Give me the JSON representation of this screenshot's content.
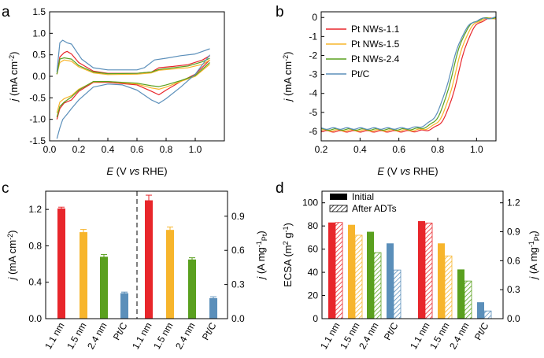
{
  "colors": {
    "red": "#e8262b",
    "orange": "#f7b52c",
    "green": "#5aa01f",
    "blue": "#5b8fba"
  },
  "panel_labels": {
    "a": "a",
    "b": "b",
    "c": "c",
    "d": "d"
  },
  "chart_data": [
    {
      "id": "a",
      "type": "line",
      "title": "",
      "xlabel_parts": [
        "E",
        " (V ",
        "vs",
        " RHE)"
      ],
      "ylabel_parts": [
        "j",
        " (mA cm",
        "-2",
        ")"
      ],
      "xlim": [
        0,
        1.2
      ],
      "ylim": [
        -1.5,
        1.5
      ],
      "xticks": [
        "0.0",
        "0.2",
        "0.4",
        "0.6",
        "0.8",
        "1.0"
      ],
      "xtick_values": [
        0,
        0.2,
        0.4,
        0.6,
        0.8,
        1.0
      ],
      "yticks": [
        "-1.5",
        "-1.0",
        "-0.5",
        "0.0",
        "0.5",
        "1.0",
        "1.5"
      ],
      "ytick_values": [
        -1.5,
        -1.0,
        -0.5,
        0,
        0.5,
        1.0,
        1.5
      ],
      "series": [
        {
          "name": "Pt NWs-1.1",
          "color": "#e8262b",
          "anodic": [
            [
              0.05,
              0.05
            ],
            [
              0.07,
              0.45
            ],
            [
              0.1,
              0.55
            ],
            [
              0.12,
              0.58
            ],
            [
              0.15,
              0.52
            ],
            [
              0.2,
              0.32
            ],
            [
              0.3,
              0.12
            ],
            [
              0.4,
              0.07
            ],
            [
              0.6,
              0.07
            ],
            [
              0.7,
              0.1
            ],
            [
              0.75,
              0.2
            ],
            [
              0.85,
              0.23
            ],
            [
              0.95,
              0.27
            ],
            [
              1.05,
              0.38
            ],
            [
              1.1,
              0.48
            ]
          ],
          "cathodic": [
            [
              1.1,
              0.38
            ],
            [
              1.0,
              0.05
            ],
            [
              0.9,
              -0.12
            ],
            [
              0.8,
              -0.32
            ],
            [
              0.75,
              -0.43
            ],
            [
              0.7,
              -0.35
            ],
            [
              0.6,
              -0.2
            ],
            [
              0.4,
              -0.14
            ],
            [
              0.3,
              -0.14
            ],
            [
              0.2,
              -0.35
            ],
            [
              0.15,
              -0.55
            ],
            [
              0.1,
              -0.62
            ],
            [
              0.07,
              -0.75
            ],
            [
              0.05,
              -1.0
            ]
          ]
        },
        {
          "name": "Pt NWs-1.5",
          "color": "#f7b52c",
          "anodic": [
            [
              0.05,
              0.05
            ],
            [
              0.07,
              0.32
            ],
            [
              0.1,
              0.38
            ],
            [
              0.15,
              0.35
            ],
            [
              0.2,
              0.22
            ],
            [
              0.3,
              0.08
            ],
            [
              0.4,
              0.04
            ],
            [
              0.6,
              0.05
            ],
            [
              0.7,
              0.08
            ],
            [
              0.75,
              0.14
            ],
            [
              0.85,
              0.17
            ],
            [
              0.95,
              0.2
            ],
            [
              1.05,
              0.28
            ],
            [
              1.1,
              0.38
            ]
          ],
          "cathodic": [
            [
              1.1,
              0.28
            ],
            [
              1.0,
              0.0
            ],
            [
              0.9,
              -0.12
            ],
            [
              0.8,
              -0.25
            ],
            [
              0.75,
              -0.3
            ],
            [
              0.7,
              -0.27
            ],
            [
              0.6,
              -0.18
            ],
            [
              0.4,
              -0.12
            ],
            [
              0.3,
              -0.13
            ],
            [
              0.2,
              -0.3
            ],
            [
              0.15,
              -0.45
            ],
            [
              0.1,
              -0.52
            ],
            [
              0.07,
              -0.6
            ],
            [
              0.05,
              -0.85
            ]
          ]
        },
        {
          "name": "Pt NWs-2.4",
          "color": "#5aa01f",
          "anodic": [
            [
              0.05,
              0.05
            ],
            [
              0.07,
              0.4
            ],
            [
              0.1,
              0.43
            ],
            [
              0.15,
              0.4
            ],
            [
              0.2,
              0.25
            ],
            [
              0.3,
              0.1
            ],
            [
              0.4,
              0.06
            ],
            [
              0.6,
              0.07
            ],
            [
              0.7,
              0.1
            ],
            [
              0.75,
              0.16
            ],
            [
              0.85,
              0.2
            ],
            [
              0.95,
              0.24
            ],
            [
              1.05,
              0.34
            ],
            [
              1.1,
              0.42
            ]
          ],
          "cathodic": [
            [
              1.1,
              0.32
            ],
            [
              1.0,
              0.02
            ],
            [
              0.9,
              -0.1
            ],
            [
              0.8,
              -0.2
            ],
            [
              0.75,
              -0.24
            ],
            [
              0.7,
              -0.22
            ],
            [
              0.6,
              -0.16
            ],
            [
              0.4,
              -0.12
            ],
            [
              0.3,
              -0.12
            ],
            [
              0.2,
              -0.32
            ],
            [
              0.15,
              -0.48
            ],
            [
              0.1,
              -0.6
            ],
            [
              0.07,
              -0.7
            ],
            [
              0.05,
              -0.95
            ]
          ]
        },
        {
          "name": "Pt/C",
          "color": "#5b8fba",
          "anodic": [
            [
              0.05,
              0.1
            ],
            [
              0.07,
              0.78
            ],
            [
              0.09,
              0.84
            ],
            [
              0.12,
              0.78
            ],
            [
              0.15,
              0.75
            ],
            [
              0.18,
              0.6
            ],
            [
              0.22,
              0.4
            ],
            [
              0.3,
              0.2
            ],
            [
              0.4,
              0.15
            ],
            [
              0.6,
              0.15
            ],
            [
              0.65,
              0.2
            ],
            [
              0.72,
              0.38
            ],
            [
              0.8,
              0.42
            ],
            [
              0.9,
              0.48
            ],
            [
              1.0,
              0.52
            ],
            [
              1.1,
              0.64
            ]
          ],
          "cathodic": [
            [
              1.1,
              0.5
            ],
            [
              1.0,
              0.05
            ],
            [
              0.9,
              -0.25
            ],
            [
              0.8,
              -0.52
            ],
            [
              0.75,
              -0.63
            ],
            [
              0.7,
              -0.55
            ],
            [
              0.6,
              -0.32
            ],
            [
              0.5,
              -0.2
            ],
            [
              0.4,
              -0.18
            ],
            [
              0.3,
              -0.25
            ],
            [
              0.2,
              -0.55
            ],
            [
              0.15,
              -0.75
            ],
            [
              0.12,
              -0.88
            ],
            [
              0.09,
              -1.0
            ],
            [
              0.07,
              -1.2
            ],
            [
              0.05,
              -1.45
            ]
          ]
        }
      ]
    },
    {
      "id": "b",
      "type": "line",
      "title": "",
      "xlabel_parts": [
        "E",
        " (V ",
        "vs",
        " RHE)"
      ],
      "ylabel_parts": [
        "j",
        " (mA cm",
        "-2",
        ")"
      ],
      "xlim": [
        0.2,
        1.1
      ],
      "ylim": [
        -6.5,
        0.3
      ],
      "xticks": [
        "0.2",
        "0.4",
        "0.6",
        "0.8",
        "1.0"
      ],
      "xtick_values": [
        0.2,
        0.4,
        0.6,
        0.8,
        1.0
      ],
      "yticks": [
        "0",
        "-1",
        "-2",
        "-3",
        "-4",
        "-5",
        "-6"
      ],
      "ytick_values": [
        0,
        -1,
        -2,
        -3,
        -4,
        -5,
        -6
      ],
      "legend_position": "top-left",
      "series": [
        {
          "name": "Pt NWs-1.1",
          "color": "#e8262b",
          "jlim": -6.0,
          "halfwave": 0.905,
          "width": 0.036
        },
        {
          "name": "Pt NWs-1.5",
          "color": "#f7b52c",
          "jlim": -5.95,
          "halfwave": 0.89,
          "width": 0.036
        },
        {
          "name": "Pt NWs-2.4",
          "color": "#5aa01f",
          "jlim": -5.9,
          "halfwave": 0.875,
          "width": 0.036
        },
        {
          "name": "Pt/C",
          "color": "#5b8fba",
          "jlim": -5.85,
          "halfwave": 0.865,
          "width": 0.038
        }
      ]
    },
    {
      "id": "c",
      "type": "bar",
      "title": "",
      "categories": [
        "1.1 nm",
        "1.5 nm",
        "2.4 nm",
        "Pt/C"
      ],
      "bar_colors": [
        "#e8262b",
        "#f7b52c",
        "#5aa01f",
        "#5b8fba"
      ],
      "left_ylabel_parts": [
        "j",
        " (mA cm",
        "-2",
        ")"
      ],
      "right_ylabel_parts": [
        "j",
        " (A mg",
        "-1",
        "Pt",
        ")"
      ],
      "left_ylim": [
        0,
        1.4
      ],
      "left_yticks": [
        "0.0",
        "0.4",
        "0.8",
        "1.2"
      ],
      "left_ytick_values": [
        0,
        0.4,
        0.8,
        1.2
      ],
      "right_ylim": [
        0,
        1.12
      ],
      "right_yticks": [
        "0.0",
        "0.3",
        "0.6",
        "0.9"
      ],
      "right_ytick_values": [
        0,
        0.3,
        0.6,
        0.9
      ],
      "specific_activity": [
        1.21,
        0.95,
        0.68,
        0.28
      ],
      "specific_activity_err": [
        0.015,
        0.03,
        0.025,
        0.012
      ],
      "mass_activity": [
        1.04,
        0.78,
        0.52,
        0.18
      ],
      "mass_activity_err": [
        0.045,
        0.025,
        0.015,
        0.012
      ]
    },
    {
      "id": "d",
      "type": "bar",
      "title": "",
      "categories": [
        "1.1 nm",
        "1.5 nm",
        "2.4 nm",
        "Pt/C"
      ],
      "bar_colors": [
        "#e8262b",
        "#f7b52c",
        "#5aa01f",
        "#5b8fba"
      ],
      "left_ylabel_parts": [
        "ECSA (m",
        "2",
        " g",
        "-1",
        ")"
      ],
      "right_ylabel_parts": [
        "j",
        " (A mg",
        "-1",
        "Pt",
        ")"
      ],
      "left_ylim": [
        0,
        110
      ],
      "left_yticks": [
        "0",
        "20",
        "40",
        "60",
        "80",
        "100"
      ],
      "left_ytick_values": [
        0,
        20,
        40,
        60,
        80,
        100
      ],
      "right_ylim": [
        0,
        1.32
      ],
      "right_yticks": [
        "0.0",
        "0.3",
        "0.6",
        "0.9",
        "1.2"
      ],
      "right_ytick_values": [
        0,
        0.3,
        0.6,
        0.9,
        1.2
      ],
      "legend": [
        "Initial",
        "After ADTs"
      ],
      "ecsa_initial": [
        83,
        81,
        75,
        65
      ],
      "ecsa_after": [
        83,
        72,
        57,
        42
      ],
      "mass_initial": [
        1.01,
        0.78,
        0.51,
        0.17
      ],
      "mass_after": [
        0.99,
        0.65,
        0.39,
        0.08
      ]
    }
  ]
}
